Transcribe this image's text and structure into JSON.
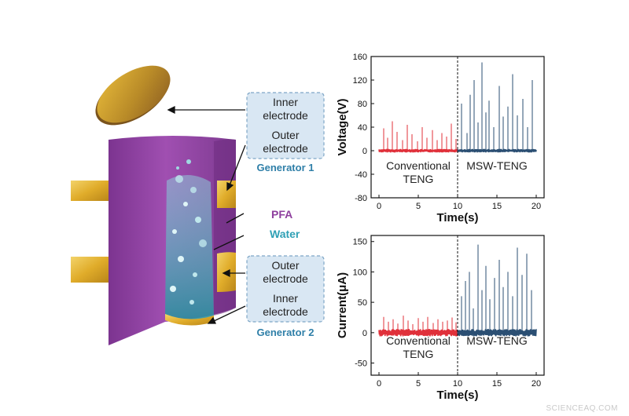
{
  "diagram": {
    "box1": {
      "line1": "Inner",
      "line2": "electrode",
      "line3": "Outer",
      "line4": "electrode"
    },
    "generator1": "Generator 1",
    "pfa": "PFA",
    "water": "Water",
    "box2": {
      "line1": "Outer",
      "line2": "electrode",
      "line3": "Inner",
      "line4": "electrode"
    },
    "generator2": "Generator 2",
    "colors": {
      "pfa": "#8e3f9e",
      "electrode": "#e3b52f",
      "water": "#2fa0b5",
      "box_fill": "#d9e7f3",
      "box_border": "#7fa6c6",
      "label": "#2f7fa8"
    }
  },
  "chart_data": [
    {
      "type": "line",
      "ylabel": "Voltage(V)",
      "xlabel": "Time(s)",
      "xlim": [
        -1,
        21
      ],
      "ylim": [
        -80,
        160
      ],
      "xticks": [
        "0",
        "5",
        "10",
        "15",
        "20"
      ],
      "yticks": [
        "160",
        "120",
        "80",
        "40",
        "0",
        "-40",
        "-80"
      ],
      "divider_x": 10,
      "regions": [
        {
          "line1": "Conventional",
          "line2": "TENG"
        },
        {
          "line1": "MSW-TENG",
          "line2": ""
        }
      ],
      "series": [
        {
          "name": "Conventional TENG",
          "color": "#e0303a",
          "x": [
            0.6,
            1.1,
            1.7,
            2.3,
            3.0,
            3.6,
            4.2,
            4.9,
            5.5,
            6.1,
            6.8,
            7.4,
            8.0,
            8.6,
            9.2,
            9.8
          ],
          "values": [
            38,
            22,
            50,
            32,
            18,
            44,
            28,
            16,
            40,
            22,
            35,
            18,
            30,
            24,
            46,
            20
          ]
        },
        {
          "name": "MSW-TENG",
          "color": "#2b4f73",
          "x": [
            10.5,
            11.2,
            11.6,
            12.1,
            12.6,
            13.1,
            13.6,
            14.0,
            14.6,
            15.3,
            15.8,
            16.4,
            17.0,
            17.6,
            18.3,
            18.9,
            19.5
          ],
          "values": [
            80,
            30,
            95,
            120,
            48,
            150,
            65,
            85,
            40,
            110,
            58,
            75,
            130,
            60,
            88,
            40,
            120
          ]
        }
      ]
    },
    {
      "type": "line",
      "ylabel": "Current(μA)",
      "xlabel": "Time(s)",
      "xlim": [
        -1,
        21
      ],
      "ylim": [
        -70,
        160
      ],
      "xticks": [
        "0",
        "5",
        "10",
        "15",
        "20"
      ],
      "yticks": [
        "150",
        "100",
        "50",
        "0",
        "-50"
      ],
      "divider_x": 10,
      "regions": [
        {
          "line1": "Conventional",
          "line2": "TENG"
        },
        {
          "line1": "MSW-TENG",
          "line2": ""
        }
      ],
      "series": [
        {
          "name": "Conventional TENG",
          "color": "#e0303a",
          "x": [
            0.6,
            1.2,
            1.8,
            2.4,
            3.1,
            3.7,
            4.3,
            5.0,
            5.6,
            6.2,
            6.9,
            7.5,
            8.1,
            8.7,
            9.3,
            9.8
          ],
          "values": [
            26,
            18,
            22,
            15,
            28,
            20,
            14,
            24,
            18,
            26,
            16,
            22,
            18,
            20,
            25,
            17
          ]
        },
        {
          "name": "MSW-TENG",
          "color": "#2b4f73",
          "x": [
            10.5,
            11.0,
            11.5,
            12.0,
            12.6,
            13.1,
            13.6,
            14.1,
            14.7,
            15.3,
            15.8,
            16.4,
            17.0,
            17.6,
            18.2,
            18.8,
            19.4
          ],
          "values": [
            60,
            85,
            100,
            40,
            145,
            70,
            110,
            55,
            90,
            120,
            75,
            100,
            60,
            140,
            95,
            130,
            70
          ]
        }
      ]
    }
  ],
  "watermark": "SCIENCEAQ.COM"
}
